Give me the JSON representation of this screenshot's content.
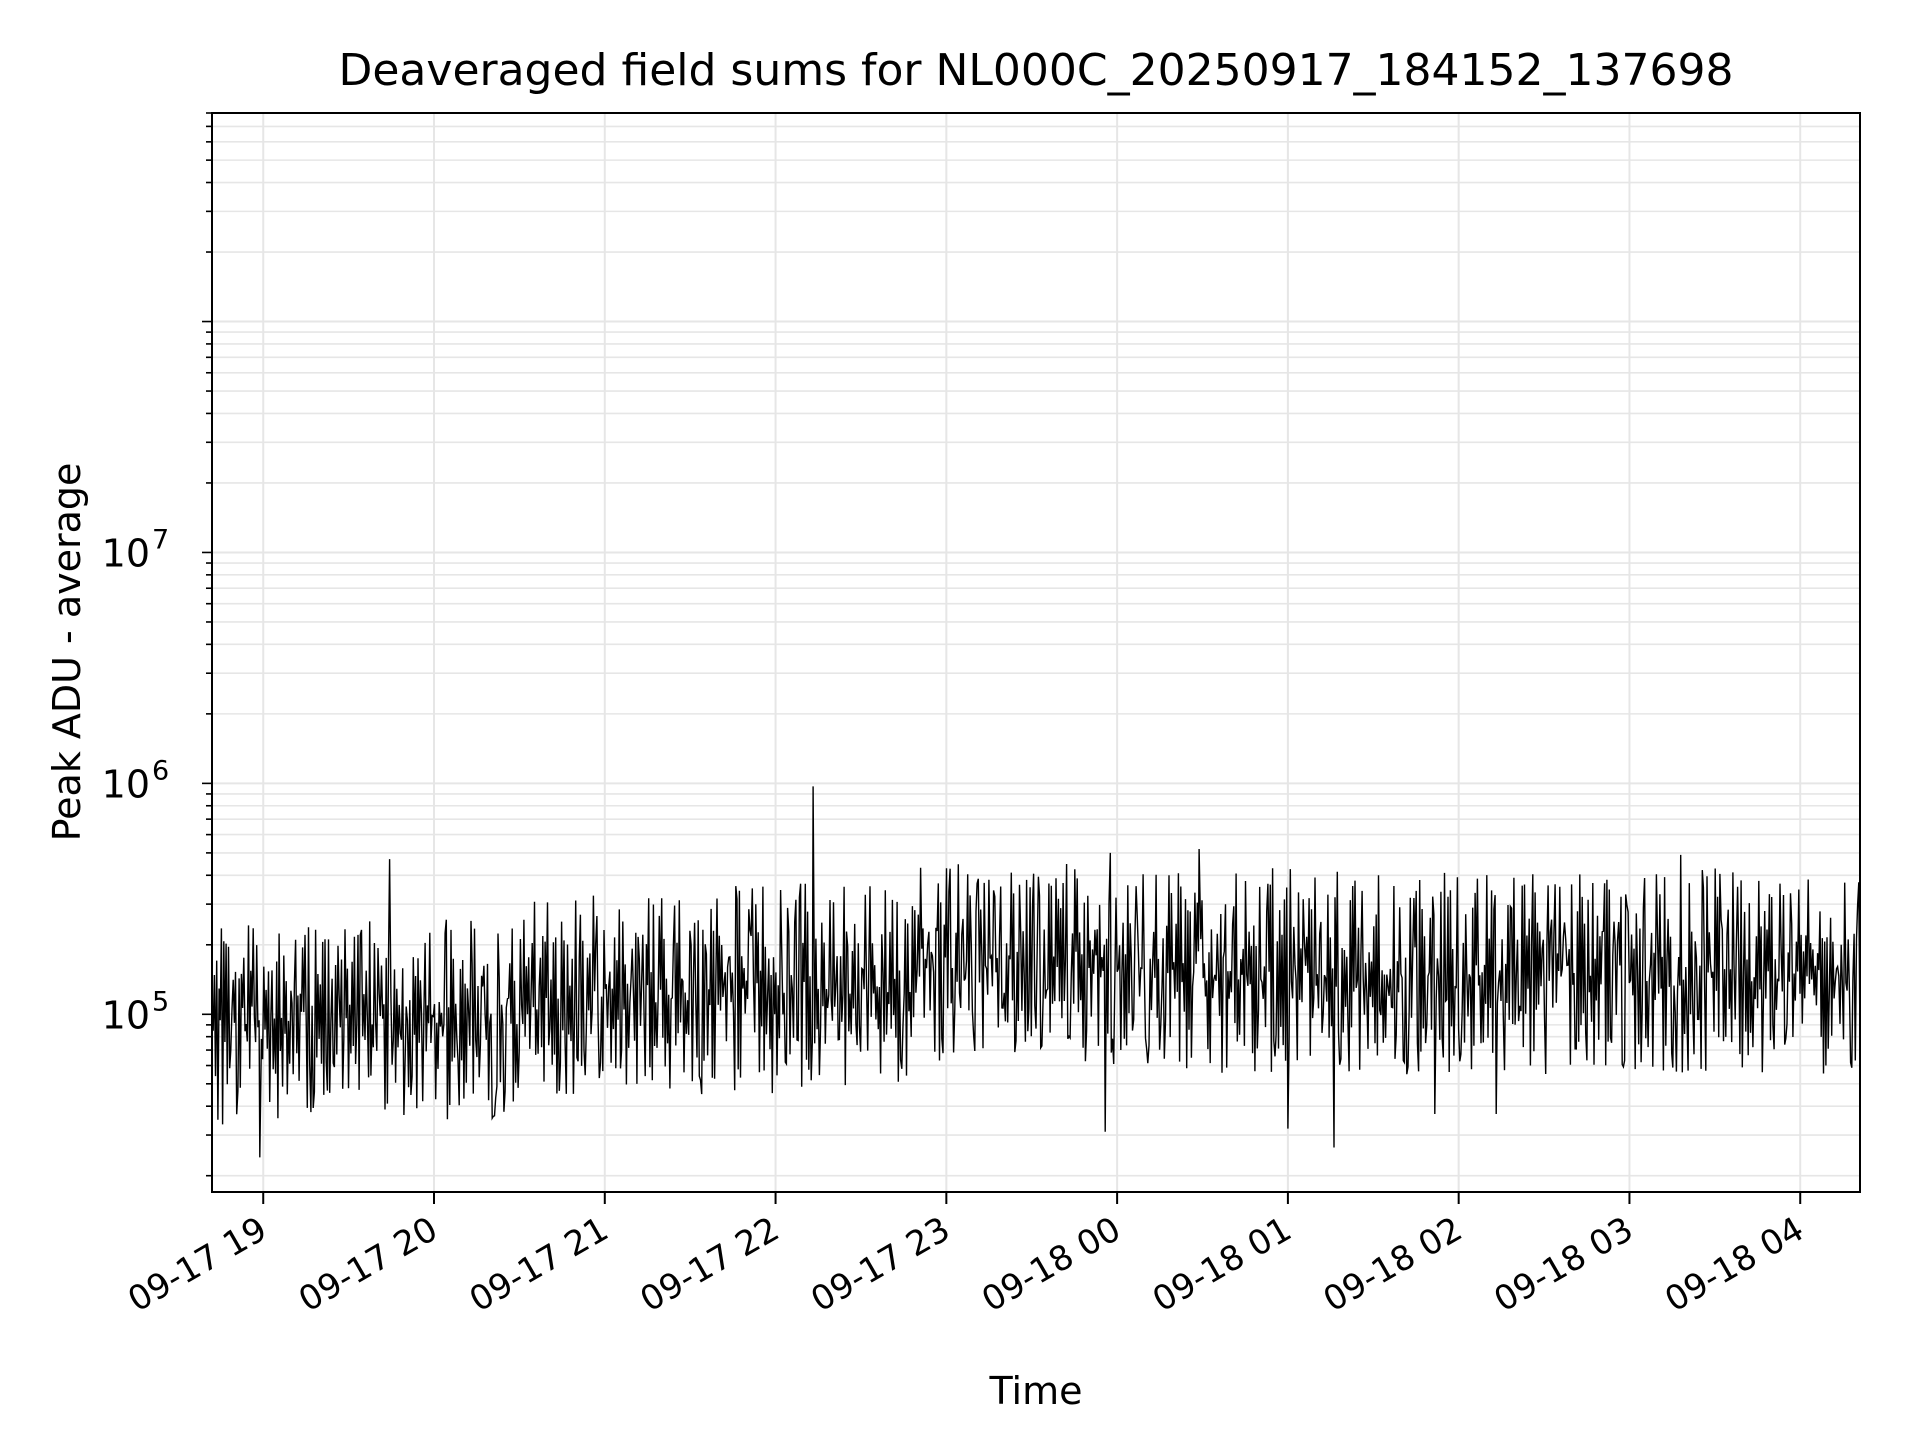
{
  "chart_data": {
    "type": "line",
    "title": "Deaveraged field sums for NL000C_20250917_184152_137698",
    "xlabel": "Time",
    "ylabel": "Peak ADU - average",
    "x_tick_labels": [
      "09-17 19",
      "09-17 20",
      "09-17 21",
      "09-17 22",
      "09-17 23",
      "09-18 00",
      "09-18 01",
      "09-18 02",
      "09-18 03",
      "09-18 04"
    ],
    "x_ticks_hours": [
      19,
      20,
      21,
      22,
      23,
      24,
      25,
      26,
      27,
      28
    ],
    "xlim_hours": [
      18.7,
      28.35
    ],
    "yscale": "log",
    "ylim": [
      17000,
      800000000
    ],
    "y_tick_labels": [
      {
        "value": 100000,
        "base": "10",
        "exp": "5"
      },
      {
        "value": 1000000,
        "base": "10",
        "exp": "6"
      },
      {
        "value": 10000000,
        "base": "10",
        "exp": "7"
      }
    ],
    "grid": true,
    "line_color": "#000000",
    "grid_color": "#e6e6e6",
    "series": [
      {
        "start_hour": 18.7,
        "end_hour": 28.35,
        "segments": [
          {
            "from": 18.7,
            "to": 19.0,
            "low": 30000,
            "high": 250000
          },
          {
            "from": 19.0,
            "to": 20.5,
            "low": 35000,
            "high": 260000
          },
          {
            "from": 20.5,
            "to": 21.5,
            "low": 45000,
            "high": 330000
          },
          {
            "from": 21.5,
            "to": 22.8,
            "low": 45000,
            "high": 380000
          },
          {
            "from": 22.8,
            "to": 24.0,
            "low": 60000,
            "high": 450000
          },
          {
            "from": 24.0,
            "to": 28.35,
            "low": 55000,
            "high": 430000
          }
        ],
        "peaks": [
          {
            "hour": 19.74,
            "value": 470000
          },
          {
            "hour": 22.22,
            "value": 970000
          },
          {
            "hour": 24.48,
            "value": 520000
          },
          {
            "hour": 23.96,
            "value": 500000
          },
          {
            "hour": 27.3,
            "value": 490000
          }
        ],
        "dips": [
          {
            "hour": 18.98,
            "value": 24000
          },
          {
            "hour": 23.93,
            "value": 31000
          },
          {
            "hour": 25.0,
            "value": 32000
          },
          {
            "hour": 25.27,
            "value": 26500
          },
          {
            "hour": 26.22,
            "value": 37000
          },
          {
            "hour": 25.86,
            "value": 37000
          }
        ]
      }
    ]
  }
}
